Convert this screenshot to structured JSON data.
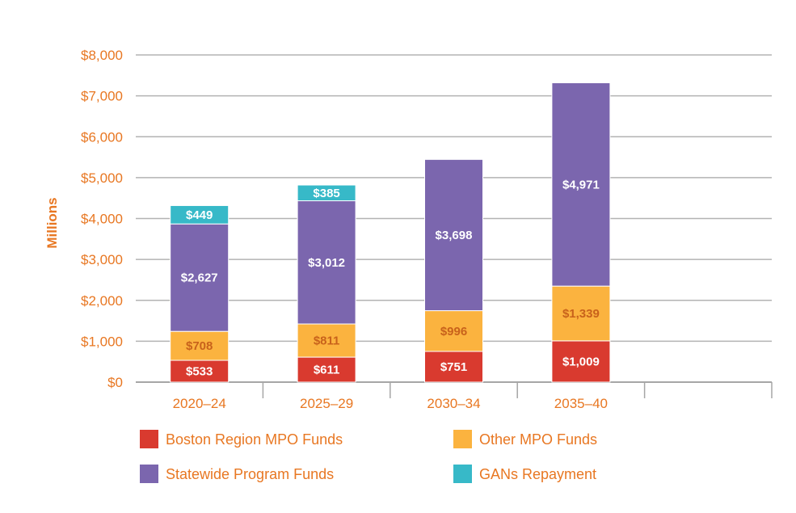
{
  "chart_data": {
    "type": "bar",
    "stacked": true,
    "title": "",
    "xlabel": "",
    "ylabel": "Millions",
    "ylim": [
      0,
      8000
    ],
    "ytick_step": 1000,
    "yticks": [
      "$0",
      "$1,000",
      "$2,000",
      "$3,000",
      "$4,000",
      "$5,000",
      "$6,000",
      "$7,000",
      "$8,000"
    ],
    "grid": true,
    "legend_placement": "bottom",
    "categories": [
      "2020–24",
      "2025–29",
      "2030–34",
      "2035–40"
    ],
    "series": [
      {
        "name": "Boston Region MPO Funds",
        "color": "#d93a2f",
        "label_color": "#ffffff",
        "values": [
          533,
          611,
          751,
          1009
        ],
        "labels": [
          "$533",
          "$611",
          "$751",
          "$1,009"
        ]
      },
      {
        "name": "Other MPO Funds",
        "color": "#fbb33f",
        "label_color": "#c8621b",
        "values": [
          708,
          811,
          996,
          1339
        ],
        "labels": [
          "$708",
          "$811",
          "$996",
          "$1,339"
        ]
      },
      {
        "name": "Statewide Program Funds",
        "color": "#7b66ae",
        "label_color": "#ffffff",
        "values": [
          2627,
          3012,
          3698,
          4971
        ],
        "labels": [
          "$2,627",
          "$3,012",
          "$3,698",
          "$4,971"
        ]
      },
      {
        "name": "GANs Repayment",
        "color": "#37b9c8",
        "label_color": "#ffffff",
        "values": [
          449,
          385,
          0,
          0
        ],
        "labels": [
          "$449",
          "$385",
          "",
          ""
        ]
      }
    ],
    "axis_color": "#e87722",
    "grid_color": "#b3b3b3"
  }
}
